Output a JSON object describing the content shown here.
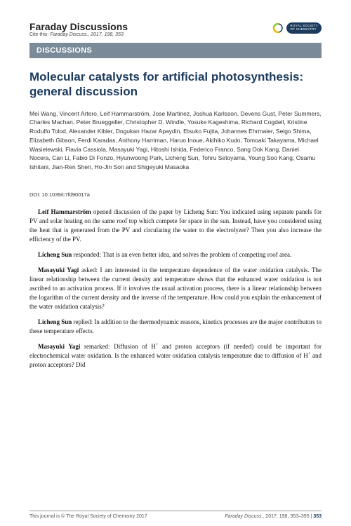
{
  "header": {
    "journal": "Faraday Discussions",
    "cite_prefix": "Cite this:",
    "cite_rest": "Faraday Discuss., 2017, 198, 353",
    "logo_text": "ROYAL SOCIETY\nOF CHEMISTRY"
  },
  "section_bar": "DISCUSSIONS",
  "title": "Molecular catalysts for artificial photosynthesis: general discussion",
  "authors": "Mei Wang, Vincent Artero, Leif Hammarström, Jose Martinez, Joshua Karlsson, Devens Gust, Peter Summers, Charles Machan, Peter Brueggeller, Christopher D. Windle, Yosuke Kageshima, Richard Cogdell, Kristine Rodulfo Tolod, Alexander Kibler, Dogukan Hazar Apaydin, Etsuko Fujita, Johannes Ehrmaier, Seigo Shima, Elizabeth Gibson, Ferdi Karadas, Anthony Harriman, Haruo Inoue, Akihiko Kudo, Tomoaki Takayama, Michael Wasielewski, Flavia Cassiola, Masayuki Yagi, Hitoshi Ishida, Federico Franco, Sang Ook Kang, Daniel Nocera, Can Li, Fabio Di Fonzo, Hyunwoong Park, Licheng Sun, Tohru Setoyama, Young Soo Kang, Osamu Ishitani, Jian-Ren Shen, Ho-Jin Son and Shigeyuki Masaoka",
  "doi": "DOI: 10.1039/c7fd90017a",
  "paragraphs": [
    {
      "speaker": "Leif Hammarström",
      "text": " opened discussion of the paper by Licheng Sun: You indicated using separate panels for PV and solar heating on the same roof top which compete for space in the sun. Instead, have you considered using the heat that is generated from the PV and circulating the water to the electrolyzer? Then you also increase the efficiency of the PV."
    },
    {
      "speaker": "Licheng Sun",
      "text": " responded: That is an even better idea, and solves the problem of competing roof area."
    },
    {
      "speaker": "Masayuki Yagi",
      "text": " asked: I am interested in the temperature dependence of the water oxidation catalysis. The linear relationship between the current density and temperature shows that the enhanced water oxidation is not ascribed to an activation process. If it involves the usual activation process, there is a linear relationship between the logarithm of the current density and the inverse of the temperature. How could you explain the enhancement of the water oxidation catalysis?"
    },
    {
      "speaker": "Licheng Sun",
      "text": " replied: In addition to the thermodynamic reasons, kinetics processes are the major contributors to these temperature effects."
    },
    {
      "speaker": "Masayuki Yagi",
      "text_html": " remarked: Diffusion of H<span class=\"sup\">+</span> and proton acceptors (if needed) could be important for electrochemical water oxidation. Is the enhanced water oxidation catalysis temperature due to diffusion of H<span class=\"sup\">+</span> and proton acceptors? Did"
    }
  ],
  "footer": {
    "left": "This journal is © The Royal Society of Chemistry 2017",
    "right_ital": "Faraday Discuss.",
    "right_rest": ", 2017, 198, 353–395 | ",
    "page_num": "353"
  },
  "colors": {
    "brand_navy": "#1b3a5c",
    "bar_gray": "#7b8a99"
  }
}
